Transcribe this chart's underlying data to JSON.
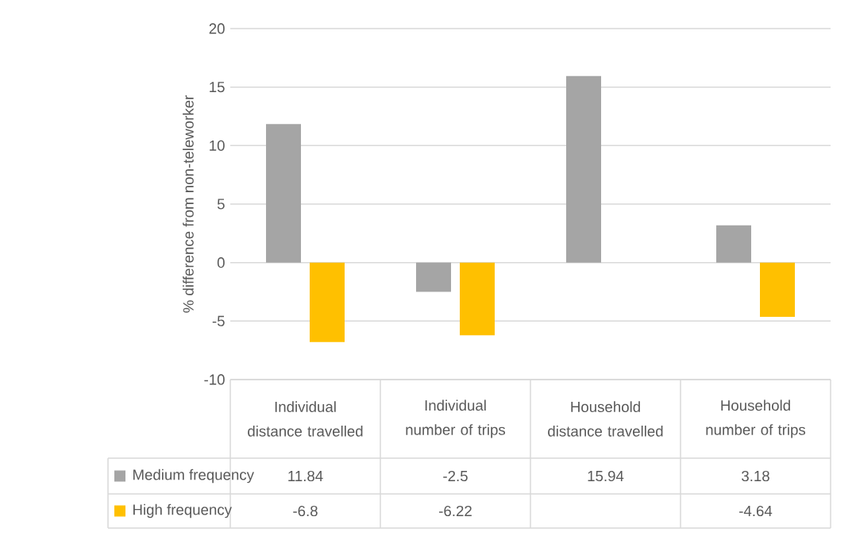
{
  "chart_data": {
    "type": "bar",
    "ylabel": "% difference from non-teleworker",
    "categories": [
      "Individual distance travelled",
      "Individual number of trips",
      "Household distance travelled",
      "Household number of trips"
    ],
    "series": [
      {
        "name": "Medium frequency",
        "color": "#a5a5a5",
        "values": [
          11.84,
          -2.5,
          15.94,
          3.18
        ]
      },
      {
        "name": "High frequency",
        "color": "#ffc000",
        "values": [
          -6.8,
          -6.22,
          null,
          -4.64
        ]
      }
    ],
    "ylim": [
      -10,
      20
    ],
    "yticks": [
      -10,
      -5,
      0,
      5,
      10,
      15,
      20
    ],
    "grid": "y",
    "legend": "bottom",
    "data_labels": true
  }
}
